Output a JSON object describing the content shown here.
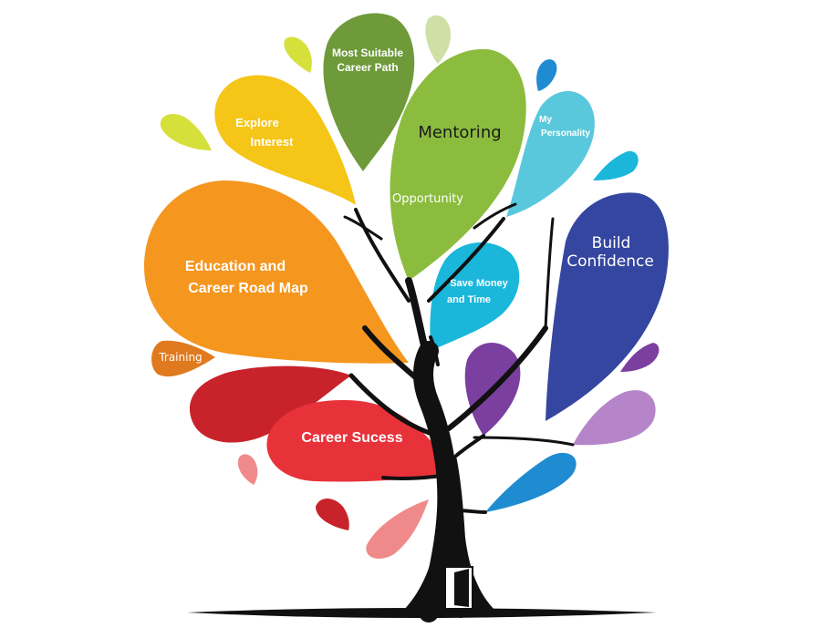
{
  "leaves": {
    "most_suitable_line1": "Most Suitable",
    "most_suitable_line2": "Career Path",
    "explore_line1": "Explore",
    "explore_line2": "Interest",
    "mentoring": "Mentoring",
    "opportunity": "Opportunity",
    "personality_line1": "My",
    "personality_line2": "Personality",
    "education_line1": "Education and",
    "education_line2": "Career Road Map",
    "save_line1": "Save Money",
    "save_line2": "and Time",
    "confidence_line1": "Build",
    "confidence_line2": "Confidence",
    "training": "Training",
    "career_success": "Career Sucess"
  },
  "colors": {
    "trunk": "#111111",
    "olive_green": "#6e9a3a",
    "pale_green": "#cfe0a6",
    "lime": "#d6e03a",
    "light_green": "#8cbc3e",
    "yellow": "#f5c518",
    "light_blue": "#5ac8dc",
    "blue": "#1f8bd1",
    "orange": "#f5961f",
    "dark_orange": "#e07a1e",
    "cyan": "#1ab7db",
    "indigo": "#3446a0",
    "purple": "#7b3fa0",
    "lavender": "#b685c9",
    "red": "#e8323a",
    "dark_red": "#c8232a",
    "pink": "#f08a8a",
    "door": "#ffffff"
  }
}
